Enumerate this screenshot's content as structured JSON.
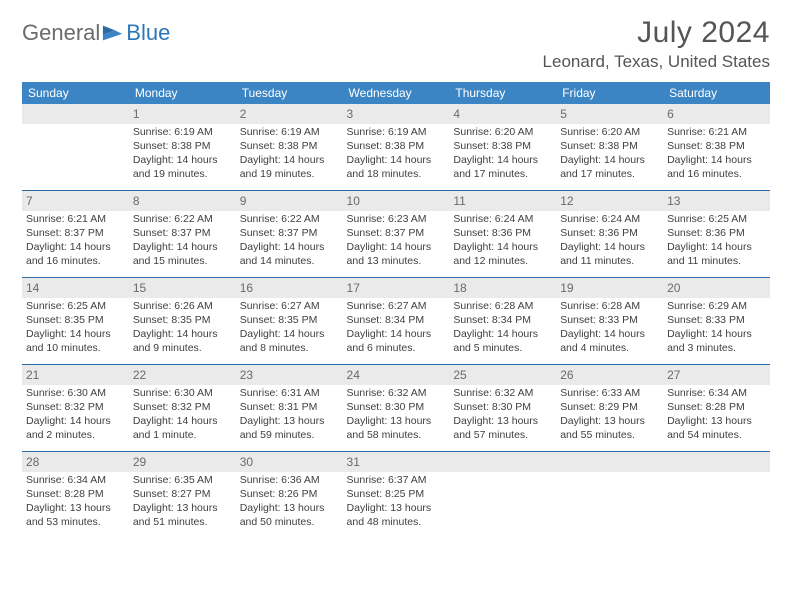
{
  "logo": {
    "part1": "General",
    "part2": "Blue"
  },
  "title": "July 2024",
  "location": "Leonard, Texas, United States",
  "colors": {
    "header_bg": "#3c85c4",
    "header_text": "#ffffff",
    "daynum_bg": "#eaeaea",
    "rule": "#2c6aa3",
    "text": "#404040",
    "logo_gray": "#6b6b6b",
    "logo_blue": "#2c77b8"
  },
  "day_labels": [
    "Sunday",
    "Monday",
    "Tuesday",
    "Wednesday",
    "Thursday",
    "Friday",
    "Saturday"
  ],
  "weeks": [
    [
      {
        "num": "",
        "lines": []
      },
      {
        "num": "1",
        "lines": [
          "Sunrise: 6:19 AM",
          "Sunset: 8:38 PM",
          "Daylight: 14 hours",
          "and 19 minutes."
        ]
      },
      {
        "num": "2",
        "lines": [
          "Sunrise: 6:19 AM",
          "Sunset: 8:38 PM",
          "Daylight: 14 hours",
          "and 19 minutes."
        ]
      },
      {
        "num": "3",
        "lines": [
          "Sunrise: 6:19 AM",
          "Sunset: 8:38 PM",
          "Daylight: 14 hours",
          "and 18 minutes."
        ]
      },
      {
        "num": "4",
        "lines": [
          "Sunrise: 6:20 AM",
          "Sunset: 8:38 PM",
          "Daylight: 14 hours",
          "and 17 minutes."
        ]
      },
      {
        "num": "5",
        "lines": [
          "Sunrise: 6:20 AM",
          "Sunset: 8:38 PM",
          "Daylight: 14 hours",
          "and 17 minutes."
        ]
      },
      {
        "num": "6",
        "lines": [
          "Sunrise: 6:21 AM",
          "Sunset: 8:38 PM",
          "Daylight: 14 hours",
          "and 16 minutes."
        ]
      }
    ],
    [
      {
        "num": "7",
        "lines": [
          "Sunrise: 6:21 AM",
          "Sunset: 8:37 PM",
          "Daylight: 14 hours",
          "and 16 minutes."
        ]
      },
      {
        "num": "8",
        "lines": [
          "Sunrise: 6:22 AM",
          "Sunset: 8:37 PM",
          "Daylight: 14 hours",
          "and 15 minutes."
        ]
      },
      {
        "num": "9",
        "lines": [
          "Sunrise: 6:22 AM",
          "Sunset: 8:37 PM",
          "Daylight: 14 hours",
          "and 14 minutes."
        ]
      },
      {
        "num": "10",
        "lines": [
          "Sunrise: 6:23 AM",
          "Sunset: 8:37 PM",
          "Daylight: 14 hours",
          "and 13 minutes."
        ]
      },
      {
        "num": "11",
        "lines": [
          "Sunrise: 6:24 AM",
          "Sunset: 8:36 PM",
          "Daylight: 14 hours",
          "and 12 minutes."
        ]
      },
      {
        "num": "12",
        "lines": [
          "Sunrise: 6:24 AM",
          "Sunset: 8:36 PM",
          "Daylight: 14 hours",
          "and 11 minutes."
        ]
      },
      {
        "num": "13",
        "lines": [
          "Sunrise: 6:25 AM",
          "Sunset: 8:36 PM",
          "Daylight: 14 hours",
          "and 11 minutes."
        ]
      }
    ],
    [
      {
        "num": "14",
        "lines": [
          "Sunrise: 6:25 AM",
          "Sunset: 8:35 PM",
          "Daylight: 14 hours",
          "and 10 minutes."
        ]
      },
      {
        "num": "15",
        "lines": [
          "Sunrise: 6:26 AM",
          "Sunset: 8:35 PM",
          "Daylight: 14 hours",
          "and 9 minutes."
        ]
      },
      {
        "num": "16",
        "lines": [
          "Sunrise: 6:27 AM",
          "Sunset: 8:35 PM",
          "Daylight: 14 hours",
          "and 8 minutes."
        ]
      },
      {
        "num": "17",
        "lines": [
          "Sunrise: 6:27 AM",
          "Sunset: 8:34 PM",
          "Daylight: 14 hours",
          "and 6 minutes."
        ]
      },
      {
        "num": "18",
        "lines": [
          "Sunrise: 6:28 AM",
          "Sunset: 8:34 PM",
          "Daylight: 14 hours",
          "and 5 minutes."
        ]
      },
      {
        "num": "19",
        "lines": [
          "Sunrise: 6:28 AM",
          "Sunset: 8:33 PM",
          "Daylight: 14 hours",
          "and 4 minutes."
        ]
      },
      {
        "num": "20",
        "lines": [
          "Sunrise: 6:29 AM",
          "Sunset: 8:33 PM",
          "Daylight: 14 hours",
          "and 3 minutes."
        ]
      }
    ],
    [
      {
        "num": "21",
        "lines": [
          "Sunrise: 6:30 AM",
          "Sunset: 8:32 PM",
          "Daylight: 14 hours",
          "and 2 minutes."
        ]
      },
      {
        "num": "22",
        "lines": [
          "Sunrise: 6:30 AM",
          "Sunset: 8:32 PM",
          "Daylight: 14 hours",
          "and 1 minute."
        ]
      },
      {
        "num": "23",
        "lines": [
          "Sunrise: 6:31 AM",
          "Sunset: 8:31 PM",
          "Daylight: 13 hours",
          "and 59 minutes."
        ]
      },
      {
        "num": "24",
        "lines": [
          "Sunrise: 6:32 AM",
          "Sunset: 8:30 PM",
          "Daylight: 13 hours",
          "and 58 minutes."
        ]
      },
      {
        "num": "25",
        "lines": [
          "Sunrise: 6:32 AM",
          "Sunset: 8:30 PM",
          "Daylight: 13 hours",
          "and 57 minutes."
        ]
      },
      {
        "num": "26",
        "lines": [
          "Sunrise: 6:33 AM",
          "Sunset: 8:29 PM",
          "Daylight: 13 hours",
          "and 55 minutes."
        ]
      },
      {
        "num": "27",
        "lines": [
          "Sunrise: 6:34 AM",
          "Sunset: 8:28 PM",
          "Daylight: 13 hours",
          "and 54 minutes."
        ]
      }
    ],
    [
      {
        "num": "28",
        "lines": [
          "Sunrise: 6:34 AM",
          "Sunset: 8:28 PM",
          "Daylight: 13 hours",
          "and 53 minutes."
        ]
      },
      {
        "num": "29",
        "lines": [
          "Sunrise: 6:35 AM",
          "Sunset: 8:27 PM",
          "Daylight: 13 hours",
          "and 51 minutes."
        ]
      },
      {
        "num": "30",
        "lines": [
          "Sunrise: 6:36 AM",
          "Sunset: 8:26 PM",
          "Daylight: 13 hours",
          "and 50 minutes."
        ]
      },
      {
        "num": "31",
        "lines": [
          "Sunrise: 6:37 AM",
          "Sunset: 8:25 PM",
          "Daylight: 13 hours",
          "and 48 minutes."
        ]
      },
      {
        "num": "",
        "lines": []
      },
      {
        "num": "",
        "lines": []
      },
      {
        "num": "",
        "lines": []
      }
    ]
  ]
}
